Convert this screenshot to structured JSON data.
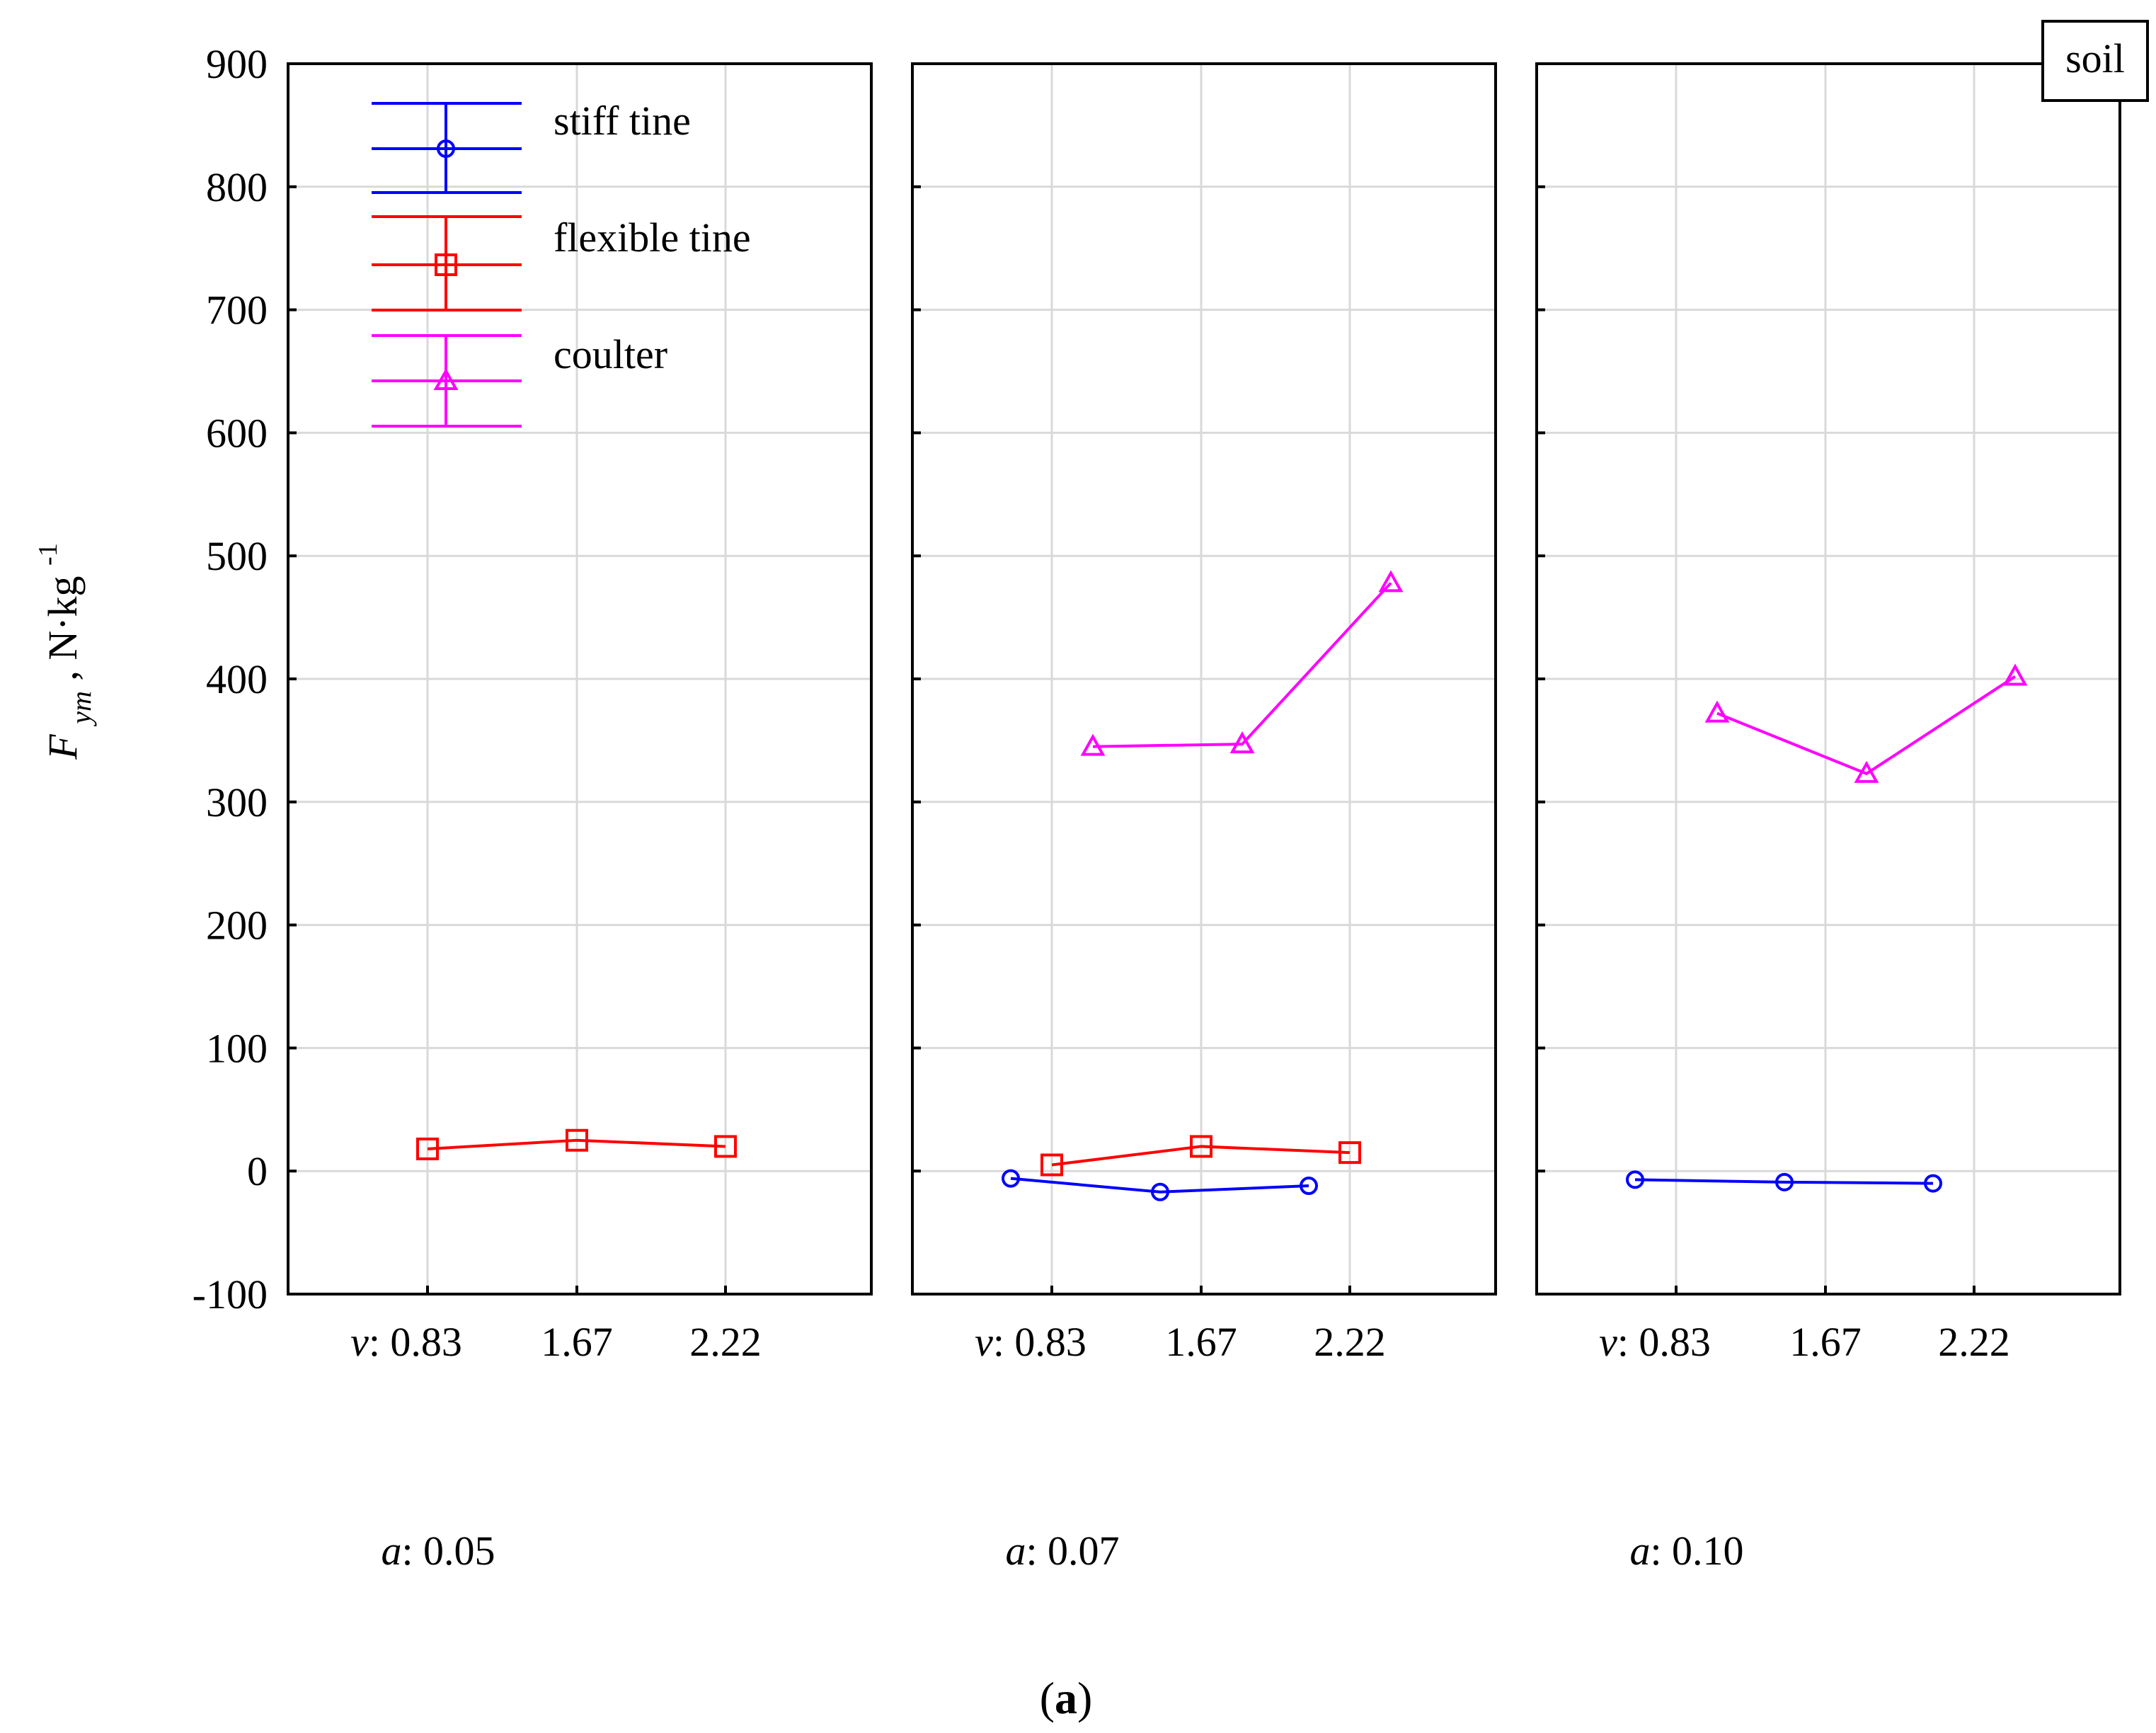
{
  "chart_data": {
    "type": "line",
    "y_axis": {
      "label_main": "F",
      "label_sub": "ym",
      "label_unit": ", N·kg",
      "label_sup": "-1",
      "ylim": [
        -100,
        900
      ],
      "ticks": [
        -100,
        0,
        100,
        200,
        300,
        400,
        500,
        600,
        700,
        800,
        900
      ],
      "tick_labels": [
        "-100",
        "0",
        "100",
        "200",
        "300",
        "400",
        "500",
        "600",
        "700",
        "800",
        "900"
      ]
    },
    "x_axis": {
      "var": "v",
      "categories": [
        "0.83",
        "1.67",
        "2.22"
      ]
    },
    "panel_var": "a",
    "badge": "soil",
    "figure_label": "a",
    "legend": [
      {
        "name": "stiff tine",
        "color": "#0000ff",
        "marker": "circle"
      },
      {
        "name": "flexible tine",
        "color": "#ff0000",
        "marker": "square"
      },
      {
        "name": "coulter",
        "color": "#ff00ff",
        "marker": "triangle"
      }
    ],
    "panels": [
      {
        "a": "0.05",
        "series": [
          {
            "name": "flexible tine",
            "values": [
              18,
              25,
              20
            ]
          }
        ]
      },
      {
        "a": "0.07",
        "series": [
          {
            "name": "stiff tine",
            "values": [
              -6,
              -17,
              -12
            ]
          },
          {
            "name": "flexible tine",
            "values": [
              5,
              20,
              15
            ]
          },
          {
            "name": "coulter",
            "values": [
              345,
              347,
              478
            ]
          }
        ]
      },
      {
        "a": "0.10",
        "series": [
          {
            "name": "stiff tine",
            "values": [
              -7,
              -9,
              -10
            ]
          },
          {
            "name": "coulter",
            "values": [
              372,
              323,
              402
            ]
          }
        ]
      }
    ]
  }
}
